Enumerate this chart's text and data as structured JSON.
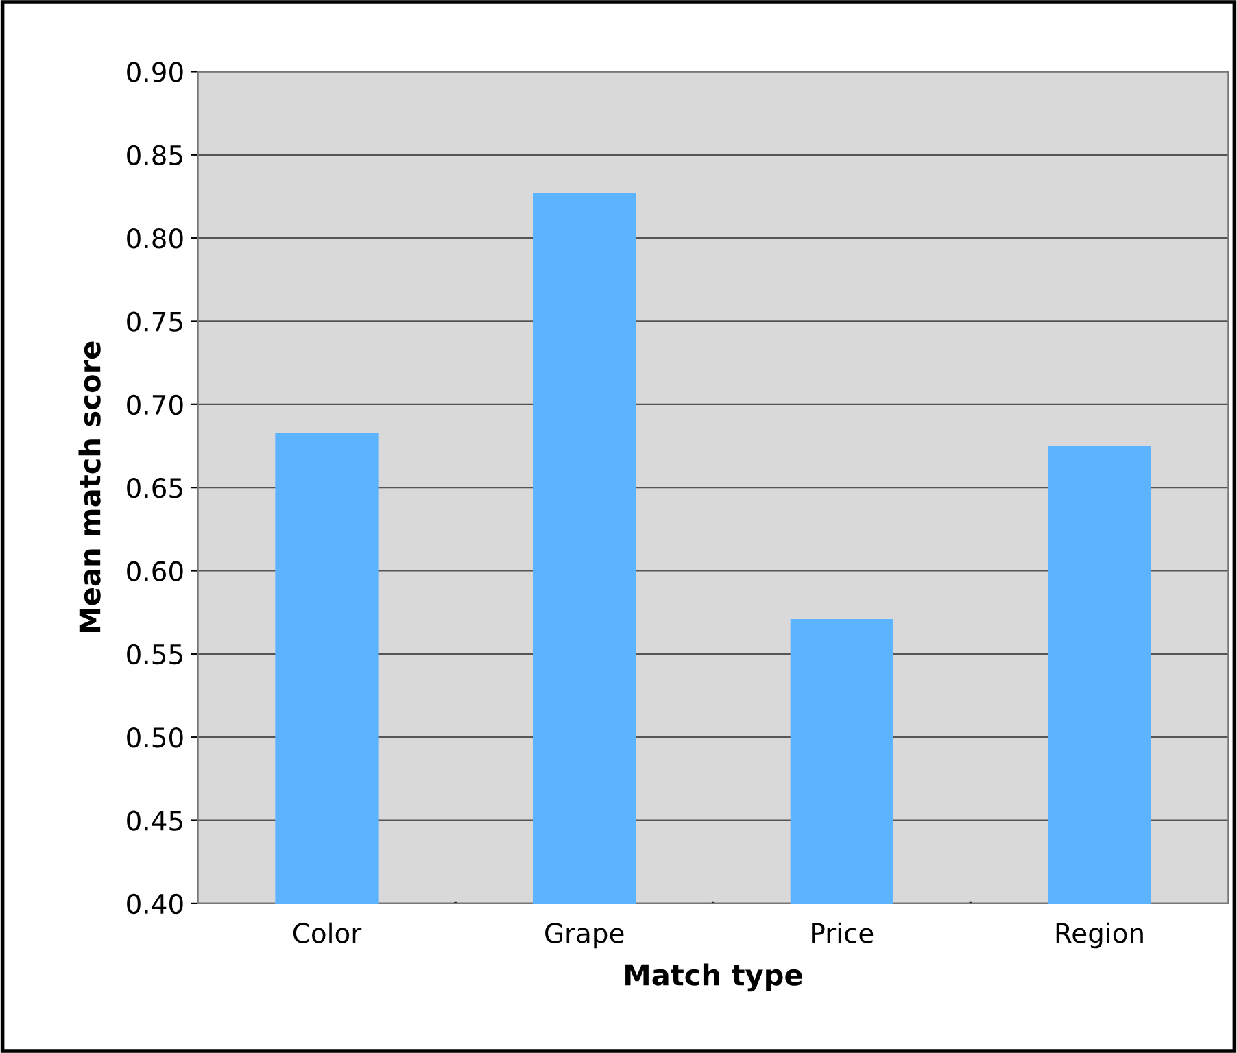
{
  "chart_data": {
    "type": "bar",
    "xlabel": "Match type",
    "ylabel": "Mean match score",
    "categories": [
      "Color",
      "Grape",
      "Price",
      "Region"
    ],
    "values": [
      0.683,
      0.827,
      0.571,
      0.675
    ],
    "color": "#5cb3ff",
    "ylim": [
      0.4,
      0.9
    ],
    "yticks": [
      {
        "value": 0.4,
        "label": "0.40"
      },
      {
        "value": 0.45,
        "label": "0.45"
      },
      {
        "value": 0.5,
        "label": "0.50"
      },
      {
        "value": 0.55,
        "label": "0.55"
      },
      {
        "value": 0.6,
        "label": "0.60"
      },
      {
        "value": 0.65,
        "label": "0.65"
      },
      {
        "value": 0.7,
        "label": "0.70"
      },
      {
        "value": 0.75,
        "label": "0.75"
      },
      {
        "value": 0.8,
        "label": "0.80"
      },
      {
        "value": 0.85,
        "label": "0.85"
      },
      {
        "value": 0.9,
        "label": "0.90"
      }
    ],
    "grid": "y",
    "legend": false
  }
}
